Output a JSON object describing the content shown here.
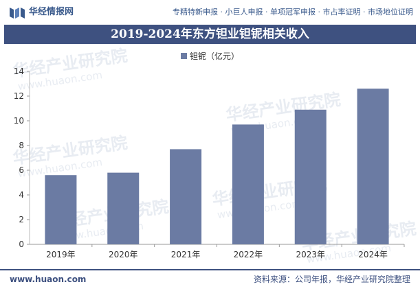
{
  "header": {
    "logo_text": "华经情报网",
    "services": "专精特新申报 · 小巨人申报 · 单项冠军申报 · 市占率证明 · 市场地位证明"
  },
  "watermark": {
    "cn": "华经产业研究院",
    "en": "www.huaon.com"
  },
  "footer": {
    "website": "www.huaon.com",
    "source": "资料来源：公司年报，华经产业研究院整理"
  },
  "colors": {
    "bar": "#6b7ba3",
    "title_bg": "#3e5180",
    "brand": "#3a5a8c"
  },
  "chart_data": {
    "type": "bar",
    "title": "2019-2024年东方钽业钽铌相关收入",
    "categories": [
      "2019年",
      "2020年",
      "2021年",
      "2022年",
      "2023年",
      "2024年"
    ],
    "series": [
      {
        "name": "钽铌（亿元）",
        "values": [
          5.6,
          5.8,
          7.7,
          9.7,
          10.9,
          12.6
        ]
      }
    ],
    "y_ticks": [
      "0",
      "2",
      "4",
      "6",
      "8",
      "10",
      "12",
      "14"
    ],
    "ylim": [
      0,
      14
    ],
    "xlabel": "",
    "ylabel": "",
    "legend_position": "top-center",
    "grid": false
  }
}
